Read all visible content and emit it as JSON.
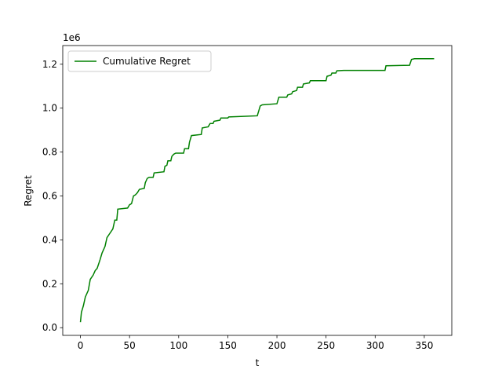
{
  "chart_data": {
    "type": "line",
    "x_label": "t",
    "y_label": "Regret",
    "y_offset_label": "1e6",
    "legend": "upper left",
    "xlim": [
      -18,
      378
    ],
    "ylim": [
      -35000,
      1285000
    ],
    "xticks": [
      0,
      50,
      100,
      150,
      200,
      250,
      300,
      350
    ],
    "yticks": [
      {
        "value": 0,
        "label": "0.0"
      },
      {
        "value": 200000,
        "label": "0.2"
      },
      {
        "value": 400000,
        "label": "0.4"
      },
      {
        "value": 600000,
        "label": "0.6"
      },
      {
        "value": 800000,
        "label": "0.8"
      },
      {
        "value": 1000000,
        "label": "1.0"
      },
      {
        "value": 1200000,
        "label": "1.2"
      }
    ],
    "x": [
      0,
      1,
      3,
      5,
      8,
      10,
      13,
      15,
      17,
      20,
      22,
      25,
      27,
      30,
      33,
      35,
      37,
      38,
      48,
      50,
      52,
      54,
      56,
      58,
      60,
      65,
      66,
      68,
      70,
      74,
      75,
      85,
      86,
      88,
      89,
      92,
      93,
      95,
      97,
      105,
      106,
      110,
      111,
      113,
      123,
      124,
      130,
      132,
      135,
      136,
      142,
      143,
      150,
      151,
      180,
      183,
      185,
      200,
      202,
      210,
      211,
      215,
      216,
      220,
      221,
      226,
      227,
      233,
      234,
      250,
      251,
      255,
      256,
      260,
      261,
      268,
      310,
      311,
      335,
      337,
      340,
      360
    ],
    "series": [
      {
        "name": "Cumulative Regret",
        "color": "#008000",
        "values": [
          25000,
          70000,
          100000,
          140000,
          170000,
          220000,
          240000,
          260000,
          270000,
          310000,
          340000,
          370000,
          410000,
          430000,
          450000,
          490000,
          490000,
          540000,
          545000,
          560000,
          565000,
          600000,
          605000,
          615000,
          630000,
          635000,
          660000,
          680000,
          685000,
          685000,
          705000,
          710000,
          735000,
          740000,
          760000,
          760000,
          780000,
          790000,
          795000,
          795000,
          815000,
          815000,
          845000,
          875000,
          880000,
          910000,
          915000,
          930000,
          930000,
          940000,
          945000,
          955000,
          955000,
          960000,
          965000,
          1010000,
          1015000,
          1020000,
          1050000,
          1050000,
          1060000,
          1065000,
          1075000,
          1080000,
          1095000,
          1095000,
          1110000,
          1115000,
          1125000,
          1125000,
          1145000,
          1150000,
          1160000,
          1160000,
          1170000,
          1172000,
          1172000,
          1193000,
          1195000,
          1222000,
          1225000,
          1225000
        ]
      }
    ]
  }
}
